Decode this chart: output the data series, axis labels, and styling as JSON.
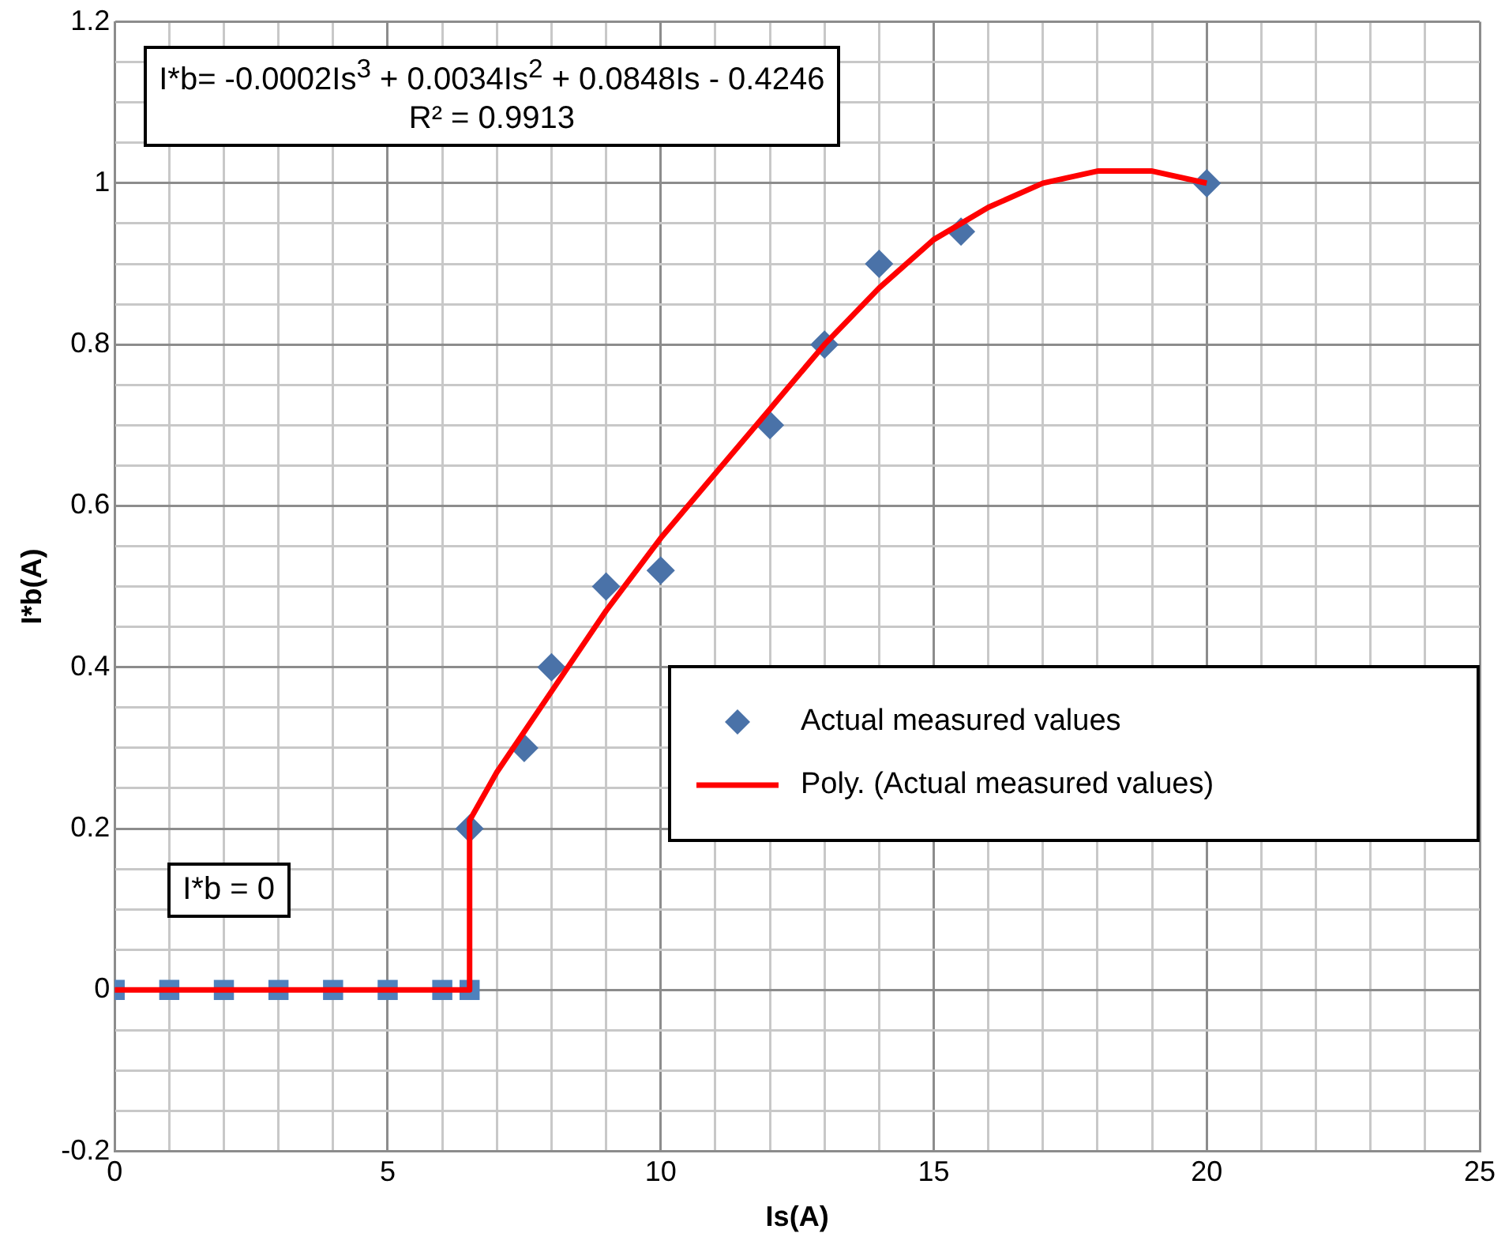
{
  "chart_data": {
    "type": "scatter",
    "xlabel": "Is(A)",
    "ylabel": "I*b(A)",
    "xlim": [
      0,
      25
    ],
    "ylim": [
      -0.2,
      1.2
    ],
    "xticks": [
      0,
      {
        "value": 1,
        "label": null
      },
      {
        "value": 2,
        "label": null
      },
      {
        "value": 3,
        "label": null
      },
      {
        "value": 4,
        "label": null
      },
      5,
      {
        "value": 6,
        "label": null
      },
      {
        "value": 7,
        "label": null
      },
      {
        "value": 8,
        "label": null
      },
      {
        "value": 9,
        "label": null
      },
      10,
      {
        "value": 11,
        "label": null
      },
      {
        "value": 12,
        "label": null
      },
      {
        "value": 13,
        "label": null
      },
      {
        "value": 14,
        "label": null
      },
      15,
      {
        "value": 16,
        "label": null
      },
      {
        "value": 17,
        "label": null
      },
      {
        "value": 18,
        "label": null
      },
      {
        "value": 19,
        "label": null
      },
      20,
      {
        "value": 21,
        "label": null
      },
      {
        "value": 22,
        "label": null
      },
      {
        "value": 23,
        "label": null
      },
      {
        "value": 24,
        "label": null
      },
      25
    ],
    "yticks": [
      -0.2,
      {
        "value": -0.15,
        "label": null
      },
      {
        "value": -0.1,
        "label": null
      },
      {
        "value": -0.05,
        "label": null
      },
      0,
      {
        "value": 0.05,
        "label": null
      },
      {
        "value": 0.1,
        "label": null
      },
      {
        "value": 0.15,
        "label": null
      },
      0.2,
      {
        "value": 0.25,
        "label": null
      },
      {
        "value": 0.3,
        "label": null
      },
      {
        "value": 0.35,
        "label": null
      },
      0.4,
      {
        "value": 0.45,
        "label": null
      },
      {
        "value": 0.5,
        "label": null
      },
      {
        "value": 0.55,
        "label": null
      },
      0.6,
      {
        "value": 0.65,
        "label": null
      },
      {
        "value": 0.7,
        "label": null
      },
      {
        "value": 0.75,
        "label": null
      },
      0.8,
      {
        "value": 0.85,
        "label": null
      },
      {
        "value": 0.9,
        "label": null
      },
      {
        "value": 0.95,
        "label": null
      },
      1,
      {
        "value": 1.05,
        "label": null
      },
      {
        "value": 1.1,
        "label": null
      },
      {
        "value": 1.15,
        "label": null
      },
      1.2
    ],
    "grid": true,
    "legend": "bottom right",
    "series": [
      {
        "color": "#4f81bd",
        "marker": "square",
        "x": [
          0,
          1,
          2,
          3,
          4,
          5,
          6,
          6.5
        ],
        "values": [
          0,
          0,
          0,
          0,
          0,
          0,
          0,
          0
        ]
      },
      {
        "name": "Actual measured values",
        "color": "#4a72a8",
        "marker": "diamond",
        "x": [
          6.5,
          7.5,
          8,
          9,
          10,
          12,
          13,
          14,
          15.5,
          20
        ],
        "values": [
          0.2,
          0.3,
          0.4,
          0.5,
          0.52,
          0.7,
          0.8,
          0.9,
          0.94,
          1.0
        ]
      },
      {
        "type": "line",
        "name": "Poly. (Actual measured values)",
        "color": "#ff0000",
        "marker": "none",
        "line_style": "solid",
        "x": [
          0,
          6.5,
          6.5,
          7,
          8,
          9,
          10,
          11,
          12,
          13,
          14,
          15,
          16,
          17,
          18,
          19,
          20
        ],
        "values": [
          0,
          0,
          0.21,
          0.27,
          0.37,
          0.47,
          0.56,
          0.64,
          0.72,
          0.8,
          0.87,
          0.93,
          0.97,
          1.0,
          1.015,
          1.015,
          1.0
        ]
      }
    ],
    "annotations": [
      "I*b= -0.0002Is$^{3}$ + 0.0034Is$^{2}$ + 0.0848Is - 0.4246\nR² = 0.9913",
      "I*b = 0"
    ]
  }
}
